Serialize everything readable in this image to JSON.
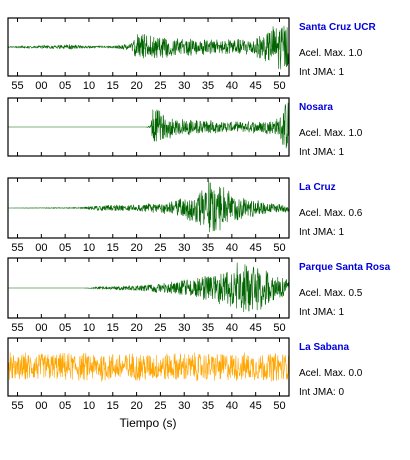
{
  "chart_data": {
    "type": "line",
    "xlabel": "Tiempo (s)",
    "xlim": [
      53,
      52
    ],
    "x_ticks": [
      "55",
      "00",
      "05",
      "10",
      "15",
      "20",
      "25",
      "30",
      "35",
      "40",
      "45",
      "50"
    ],
    "colors": {
      "green": "#006400",
      "orange": "#ffa500"
    },
    "panels": [
      {
        "station": "Santa Cruz UCR",
        "acel": "Acel. Max. 1.0",
        "intjma": "Int JMA: 1",
        "color": "#006400",
        "shows_ticks": true,
        "envelope": [
          {
            "t": 53,
            "a": 0.02
          },
          {
            "t": 58,
            "a": 0.05
          },
          {
            "t": 62,
            "a": 0.06
          },
          {
            "t": 66,
            "a": 0.1
          },
          {
            "t": 70,
            "a": 0.04
          },
          {
            "t": 75,
            "a": 0.04
          },
          {
            "t": 79,
            "a": 0.15
          },
          {
            "t": 80,
            "a": 0.5
          },
          {
            "t": 84,
            "a": 0.45
          },
          {
            "t": 88,
            "a": 0.35
          },
          {
            "t": 96,
            "a": 0.3
          },
          {
            "t": 101,
            "a": 0.3
          },
          {
            "t": 104,
            "a": 0.35
          },
          {
            "t": 108,
            "a": 0.7
          },
          {
            "t": 110,
            "a": 1.0
          },
          {
            "t": 112,
            "a": 1.0
          }
        ]
      },
      {
        "station": "Nosara",
        "acel": "Acel. Max. 1.0",
        "intjma": "Int JMA: 1",
        "color": "#006400",
        "shows_ticks": false,
        "envelope": [
          {
            "t": 53,
            "a": 0.0
          },
          {
            "t": 82,
            "a": 0.0
          },
          {
            "t": 83,
            "a": 0.08
          },
          {
            "t": 83.5,
            "a": 0.85
          },
          {
            "t": 86,
            "a": 0.45
          },
          {
            "t": 92,
            "a": 0.3
          },
          {
            "t": 100,
            "a": 0.2
          },
          {
            "t": 107,
            "a": 0.25
          },
          {
            "t": 110,
            "a": 0.35
          },
          {
            "t": 111,
            "a": 1.0
          },
          {
            "t": 112,
            "a": 1.0
          }
        ]
      },
      {
        "station": "La Cruz",
        "acel": "Acel. Max. 0.6",
        "intjma": "Int JMA: 1",
        "color": "#006400",
        "shows_ticks": true,
        "envelope": [
          {
            "t": 53,
            "a": 0.0
          },
          {
            "t": 68,
            "a": 0.02
          },
          {
            "t": 72,
            "a": 0.1
          },
          {
            "t": 80,
            "a": 0.12
          },
          {
            "t": 86,
            "a": 0.22
          },
          {
            "t": 90,
            "a": 0.38
          },
          {
            "t": 93,
            "a": 0.65
          },
          {
            "t": 95,
            "a": 1.0
          },
          {
            "t": 97,
            "a": 0.95
          },
          {
            "t": 100,
            "a": 0.55
          },
          {
            "t": 104,
            "a": 0.35
          },
          {
            "t": 108,
            "a": 0.2
          },
          {
            "t": 112,
            "a": 0.15
          }
        ]
      },
      {
        "station": "Parque Santa Rosa",
        "acel": "Acel. Max. 0.5",
        "intjma": "Int JMA: 1",
        "color": "#006400",
        "shows_ticks": true,
        "envelope": [
          {
            "t": 53,
            "a": 0.0
          },
          {
            "t": 69,
            "a": 0.0
          },
          {
            "t": 72,
            "a": 0.05
          },
          {
            "t": 80,
            "a": 0.1
          },
          {
            "t": 86,
            "a": 0.2
          },
          {
            "t": 92,
            "a": 0.35
          },
          {
            "t": 97,
            "a": 0.6
          },
          {
            "t": 100,
            "a": 0.85
          },
          {
            "t": 103,
            "a": 1.0
          },
          {
            "t": 106,
            "a": 0.8
          },
          {
            "t": 109,
            "a": 0.5
          },
          {
            "t": 112,
            "a": 0.3
          }
        ]
      },
      {
        "station": "La Sabana",
        "acel": "Acel. Max. 0.0",
        "intjma": "Int JMA: 0",
        "color": "#ffa500",
        "shows_ticks": true,
        "envelope": [
          {
            "t": 53,
            "a": 0.55
          },
          {
            "t": 112,
            "a": 0.55
          }
        ]
      }
    ]
  }
}
